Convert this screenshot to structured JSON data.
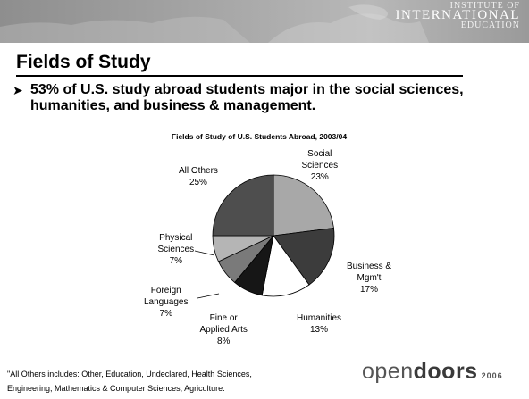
{
  "header": {
    "org_line1": "INSTITUTE OF",
    "org_line2": "INTERNATIONAL",
    "org_line3": "EDUCATION"
  },
  "slide": {
    "title": "Fields of Study",
    "bullet": "53% of U.S. study abroad students major in the social sciences, humanities, and business & management.",
    "footnote_line1": "\"All Others includes: Other, Education, Undeclared, Health Sciences,",
    "footnote_line2": "Engineering, Mathematics & Computer Sciences, Agriculture.",
    "logo_open": "open",
    "logo_doors": "doors",
    "logo_year": "2006"
  },
  "chart_data": {
    "type": "pie",
    "title": "Fields of Study of U.S. Students Abroad, 2003/04",
    "slices": [
      {
        "label": "Social Sciences",
        "label_lines": [
          "Social",
          "Sciences"
        ],
        "value": 23,
        "display": "23%",
        "color": "#a8a8a8"
      },
      {
        "label": "Business & Mgm't",
        "label_lines": [
          "Business &",
          "Mgm't"
        ],
        "value": 17,
        "display": "17%",
        "color": "#3c3c3c"
      },
      {
        "label": "Humanities",
        "label_lines": [
          "Humanities"
        ],
        "value": 13,
        "display": "13%",
        "color": "#ffffff"
      },
      {
        "label": "Fine or Applied Arts",
        "label_lines": [
          "Fine or",
          "Applied Arts"
        ],
        "value": 8,
        "display": "8%",
        "color": "#161616"
      },
      {
        "label": "Foreign Languages",
        "label_lines": [
          "Foreign",
          "Languages"
        ],
        "value": 7,
        "display": "7%",
        "color": "#7a7a7a"
      },
      {
        "label": "Physical Sciences",
        "label_lines": [
          "Physical",
          "Sciences"
        ],
        "value": 7,
        "display": "7%",
        "color": "#b5b5b5"
      },
      {
        "label": "All Others",
        "label_lines": [
          "All Others"
        ],
        "value": 25,
        "display": "25%",
        "color": "#4e4e4e"
      }
    ]
  }
}
